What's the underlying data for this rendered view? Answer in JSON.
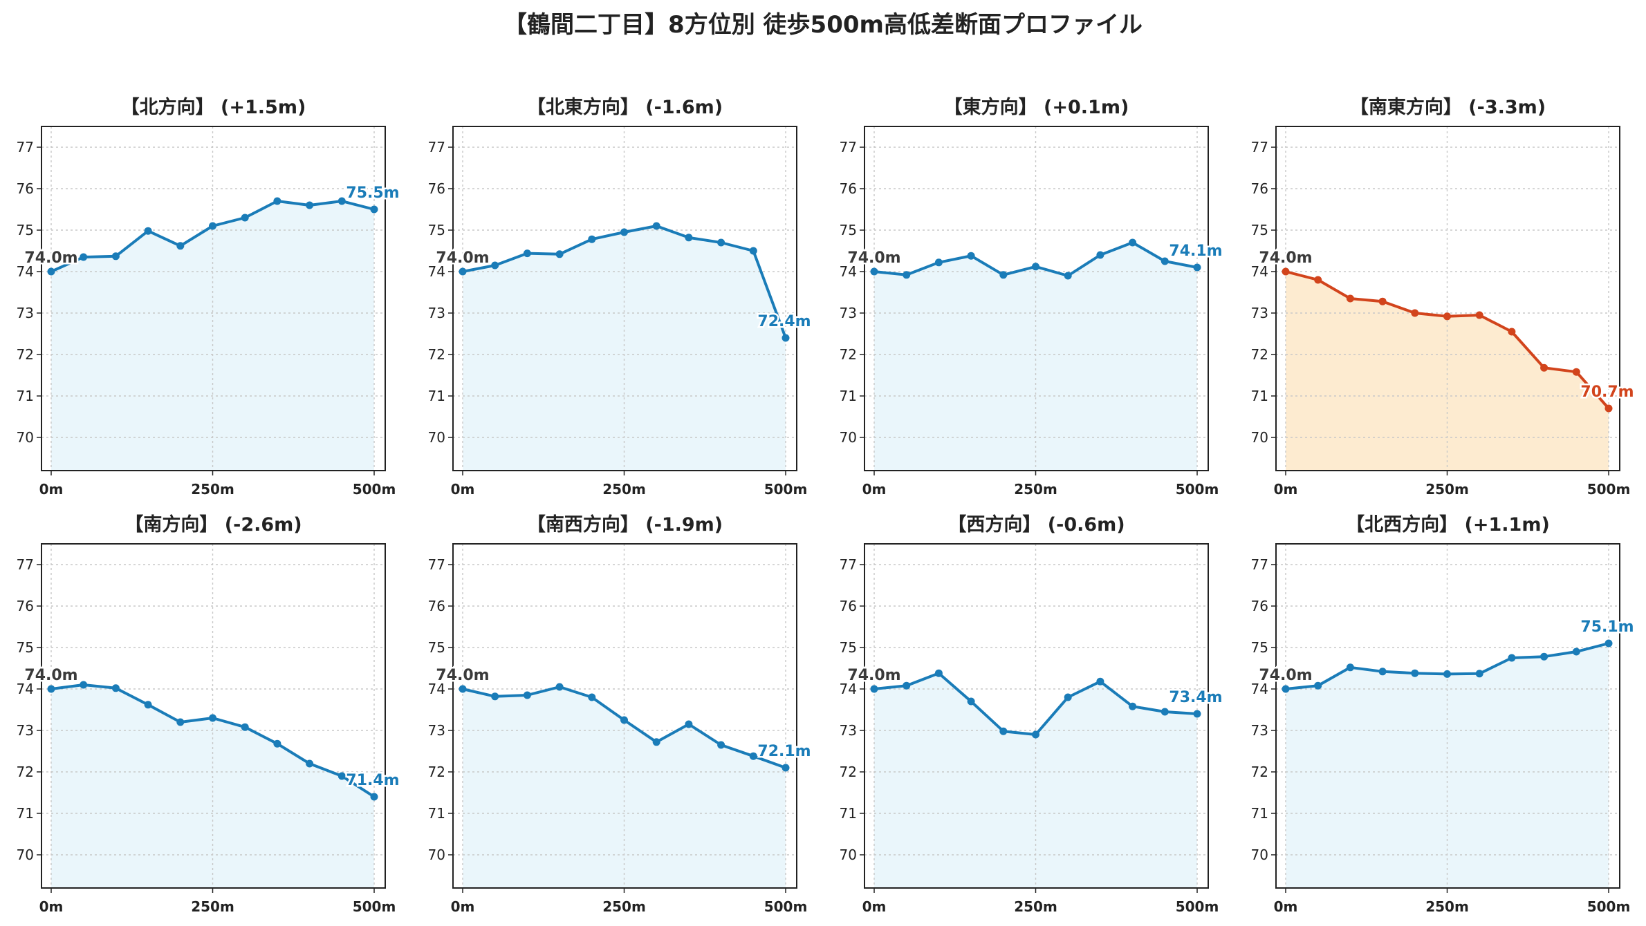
{
  "title": "【鶴間二丁目】8方位別 徒歩500m高低差断面プロファイル",
  "colors": {
    "rise": "#1a7cb8",
    "fall": "#d2441c",
    "rise_fill": "#eaf6fb",
    "fall_fill": "#fdebd0",
    "start_label": "#3a3a3a",
    "grid": "#c8c8c8",
    "axis": "#222222"
  },
  "chart_data": [
    {
      "type": "area",
      "title": "【北方向】 (+1.5m)",
      "x": [
        0,
        50,
        100,
        150,
        200,
        250,
        300,
        350,
        400,
        450,
        500
      ],
      "values": [
        74.0,
        74.35,
        74.37,
        74.98,
        74.62,
        75.1,
        75.3,
        75.7,
        75.6,
        75.7,
        75.5
      ],
      "start_label": "74.0m",
      "end_label": "75.5m",
      "trend": "rise",
      "xticks": [
        "0m",
        "250m",
        "500m"
      ],
      "yticks": [
        70,
        71,
        72,
        73,
        74,
        75,
        76,
        77
      ],
      "ylim": [
        69.2,
        77.5
      ],
      "grid": true
    },
    {
      "type": "area",
      "title": "【北東方向】 (-1.6m)",
      "x": [
        0,
        50,
        100,
        150,
        200,
        250,
        300,
        350,
        400,
        450,
        500
      ],
      "values": [
        74.0,
        74.15,
        74.44,
        74.42,
        74.78,
        74.95,
        75.1,
        74.82,
        74.7,
        74.5,
        72.4
      ],
      "start_label": "74.0m",
      "end_label": "72.4m",
      "trend": "rise",
      "xticks": [
        "0m",
        "250m",
        "500m"
      ],
      "yticks": [
        70,
        71,
        72,
        73,
        74,
        75,
        76,
        77
      ],
      "ylim": [
        69.2,
        77.5
      ],
      "grid": true
    },
    {
      "type": "area",
      "title": "【東方向】 (+0.1m)",
      "x": [
        0,
        50,
        100,
        150,
        200,
        250,
        300,
        350,
        400,
        450,
        500
      ],
      "values": [
        74.0,
        73.92,
        74.22,
        74.38,
        73.92,
        74.12,
        73.9,
        74.4,
        74.7,
        74.25,
        74.1
      ],
      "start_label": "74.0m",
      "end_label": "74.1m",
      "trend": "rise",
      "xticks": [
        "0m",
        "250m",
        "500m"
      ],
      "yticks": [
        70,
        71,
        72,
        73,
        74,
        75,
        76,
        77
      ],
      "ylim": [
        69.2,
        77.5
      ],
      "grid": true
    },
    {
      "type": "area",
      "title": "【南東方向】 (-3.3m)",
      "x": [
        0,
        50,
        100,
        150,
        200,
        250,
        300,
        350,
        400,
        450,
        500
      ],
      "values": [
        74.0,
        73.8,
        73.35,
        73.28,
        73.0,
        72.92,
        72.95,
        72.55,
        71.68,
        71.58,
        70.7
      ],
      "start_label": "74.0m",
      "end_label": "70.7m",
      "trend": "fall",
      "xticks": [
        "0m",
        "250m",
        "500m"
      ],
      "yticks": [
        70,
        71,
        72,
        73,
        74,
        75,
        76,
        77
      ],
      "ylim": [
        69.2,
        77.5
      ],
      "grid": true
    },
    {
      "type": "area",
      "title": "【南方向】 (-2.6m)",
      "x": [
        0,
        50,
        100,
        150,
        200,
        250,
        300,
        350,
        400,
        450,
        500
      ],
      "values": [
        74.0,
        74.1,
        74.02,
        73.62,
        73.2,
        73.3,
        73.08,
        72.68,
        72.2,
        71.9,
        71.4
      ],
      "start_label": "74.0m",
      "end_label": "71.4m",
      "trend": "rise",
      "xticks": [
        "0m",
        "250m",
        "500m"
      ],
      "yticks": [
        70,
        71,
        72,
        73,
        74,
        75,
        76,
        77
      ],
      "ylim": [
        69.2,
        77.5
      ],
      "grid": true
    },
    {
      "type": "area",
      "title": "【南西方向】 (-1.9m)",
      "x": [
        0,
        50,
        100,
        150,
        200,
        250,
        300,
        350,
        400,
        450,
        500
      ],
      "values": [
        74.0,
        73.82,
        73.85,
        74.05,
        73.8,
        73.25,
        72.72,
        73.15,
        72.65,
        72.38,
        72.1
      ],
      "start_label": "74.0m",
      "end_label": "72.1m",
      "trend": "rise",
      "xticks": [
        "0m",
        "250m",
        "500m"
      ],
      "yticks": [
        70,
        71,
        72,
        73,
        74,
        75,
        76,
        77
      ],
      "ylim": [
        69.2,
        77.5
      ],
      "grid": true
    },
    {
      "type": "area",
      "title": "【西方向】 (-0.6m)",
      "x": [
        0,
        50,
        100,
        150,
        200,
        250,
        300,
        350,
        400,
        450,
        500
      ],
      "values": [
        74.0,
        74.08,
        74.38,
        73.7,
        72.98,
        72.9,
        73.8,
        74.18,
        73.58,
        73.45,
        73.4
      ],
      "start_label": "74.0m",
      "end_label": "73.4m",
      "trend": "rise",
      "xticks": [
        "0m",
        "250m",
        "500m"
      ],
      "yticks": [
        70,
        71,
        72,
        73,
        74,
        75,
        76,
        77
      ],
      "ylim": [
        69.2,
        77.5
      ],
      "grid": true
    },
    {
      "type": "area",
      "title": "【北西方向】 (+1.1m)",
      "x": [
        0,
        50,
        100,
        150,
        200,
        250,
        300,
        350,
        400,
        450,
        500
      ],
      "values": [
        74.0,
        74.08,
        74.52,
        74.42,
        74.38,
        74.36,
        74.37,
        74.75,
        74.78,
        74.9,
        75.1
      ],
      "start_label": "74.0m",
      "end_label": "75.1m",
      "trend": "rise",
      "xticks": [
        "0m",
        "250m",
        "500m"
      ],
      "yticks": [
        70,
        71,
        72,
        73,
        74,
        75,
        76,
        77
      ],
      "ylim": [
        69.2,
        77.5
      ],
      "grid": true
    }
  ]
}
